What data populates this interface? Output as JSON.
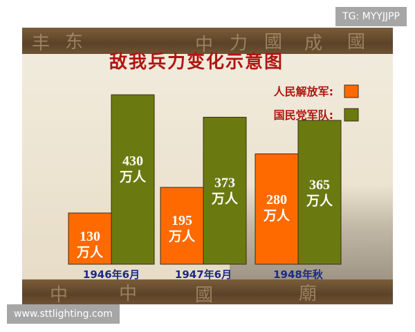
{
  "chart_data": {
    "type": "bar",
    "title": "敌我兵力变化示意图",
    "categories": [
      "1946年6月",
      "1947年6月",
      "1948年秋"
    ],
    "series": [
      {
        "name": "人民解放军:",
        "values": [
          130,
          195,
          280
        ],
        "color": "#ff6a00"
      },
      {
        "name": "国民党军队:",
        "values": [
          430,
          373,
          365
        ],
        "color": "#6b7a10"
      }
    ],
    "unit_label": "万人",
    "ylim": [
      0,
      430
    ],
    "legend_position": "top-right"
  },
  "watermarks": {
    "top": "TG: MYYJJPP",
    "bottom": "www.sttlighting.com"
  }
}
